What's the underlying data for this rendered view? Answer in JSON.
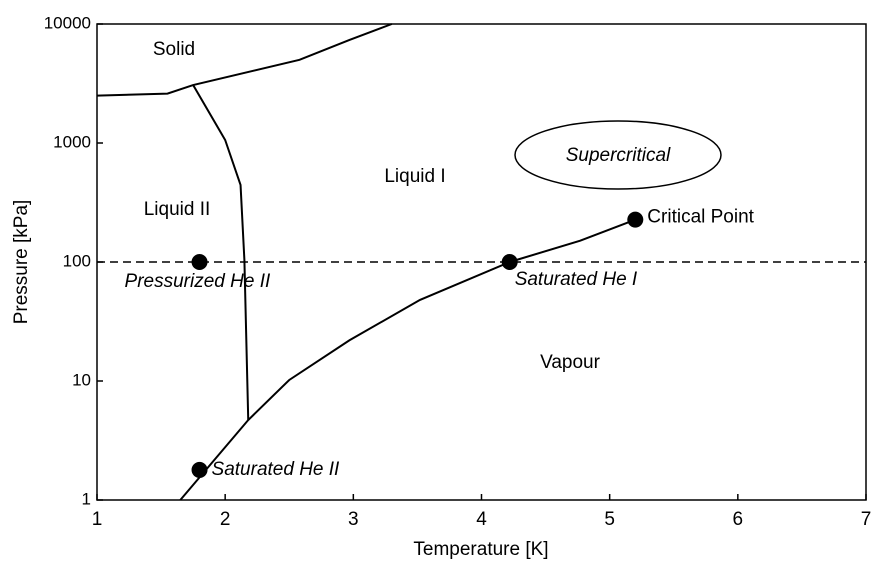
{
  "chart_data": {
    "type": "line",
    "x_label": "Temperature [K]",
    "y_label": "Pressure [kPa]",
    "xlim": [
      1,
      7
    ],
    "xticks": [
      1,
      2,
      3,
      4,
      5,
      6,
      7
    ],
    "ylim": [
      1,
      10000
    ],
    "yticks": [
      1,
      10,
      100,
      1000,
      10000
    ],
    "log_y": true,
    "color": "#000000",
    "series": [
      {
        "x": [
          1,
          1.55,
          1.75,
          2.58,
          2.97,
          3.3
        ],
        "values": [
          2500,
          2600,
          3070,
          5000,
          7350,
          10000
        ]
      },
      {
        "x": [
          1.75,
          2.0,
          2.12,
          2.15,
          2.18
        ],
        "values": [
          3070,
          1060,
          444,
          104,
          4.7
        ]
      },
      {
        "x": [
          1.65,
          2.18,
          2.5,
          2.97,
          3.52,
          4.22,
          4.77,
          5.2
        ],
        "values": [
          1,
          4.7,
          10.2,
          22,
          48,
          100,
          151,
          227
        ]
      }
    ],
    "reference_line": {
      "y": 100,
      "style": "dashed"
    },
    "points": [
      {
        "label": "Critical Point",
        "x": 5.2,
        "y": 227
      },
      {
        "label": "Saturated He I",
        "x": 4.22,
        "y": 100
      },
      {
        "label": "Pressurized He II",
        "x": 1.8,
        "y": 100
      },
      {
        "label": "Saturated He II",
        "x": 1.8,
        "y": 1.79
      }
    ],
    "annotations": [
      "Solid",
      "Liquid II",
      "Liquid I",
      "Supercritical",
      "Vapour"
    ]
  }
}
